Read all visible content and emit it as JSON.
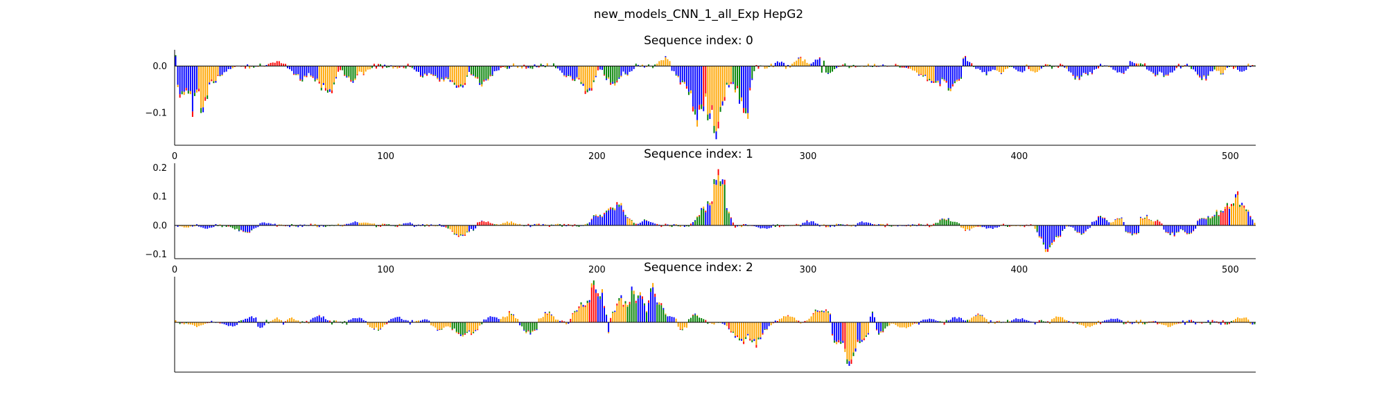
{
  "figure": {
    "title": "new_models_CNN_1_all_Exp HepG2"
  },
  "colors": {
    "A": "#008000",
    "C": "#0000ff",
    "G": "#ffa500",
    "T": "#ff0000"
  },
  "chart_data": [
    {
      "type": "sequence-logo",
      "title": "Sequence index: 0",
      "xlim": [
        0,
        512
      ],
      "ylim": [
        -0.17,
        0.035
      ],
      "xticks": [
        0,
        100,
        200,
        300,
        400,
        500
      ],
      "yticks": [
        0.0,
        -0.1
      ],
      "ytick_labels": [
        "0.0",
        "−0.1"
      ],
      "xtick_labels": [
        "0",
        "100",
        "200",
        "300",
        "400",
        "500"
      ],
      "show_ytick_labels": true,
      "show_xtick_labels": true,
      "features": [
        {
          "x": 0,
          "w": 2,
          "amp": 0.03,
          "b": "C"
        },
        {
          "x": 3,
          "w": 2,
          "amp": -0.08,
          "b": "C"
        },
        {
          "x": 6,
          "w": 1,
          "amp": 0.03,
          "b": "T"
        },
        {
          "x": 8,
          "w": 2,
          "amp": -0.1,
          "b": "C"
        },
        {
          "x": 13,
          "w": 2,
          "amp": -0.11,
          "b": "G"
        },
        {
          "x": 18,
          "w": 3,
          "amp": -0.035,
          "b": "G"
        },
        {
          "x": 22,
          "w": 3,
          "amp": -0.018,
          "b": "C"
        },
        {
          "x": 48,
          "w": 3,
          "amp": 0.012,
          "b": "T"
        },
        {
          "x": 60,
          "w": 4,
          "amp": -0.03,
          "b": "C"
        },
        {
          "x": 68,
          "w": 3,
          "amp": -0.04,
          "b": "C"
        },
        {
          "x": 72,
          "w": 3,
          "amp": -0.065,
          "b": "G"
        },
        {
          "x": 83,
          "w": 3,
          "amp": -0.035,
          "b": "A"
        },
        {
          "x": 88,
          "w": 3,
          "amp": -0.02,
          "b": "G"
        },
        {
          "x": 117,
          "w": 3,
          "amp": -0.025,
          "b": "C"
        },
        {
          "x": 127,
          "w": 5,
          "amp": -0.035,
          "b": "C"
        },
        {
          "x": 134,
          "w": 3,
          "amp": -0.06,
          "b": "G"
        },
        {
          "x": 145,
          "w": 4,
          "amp": -0.04,
          "b": "A"
        },
        {
          "x": 151,
          "w": 2,
          "amp": -0.015,
          "b": "C"
        },
        {
          "x": 185,
          "w": 3,
          "amp": -0.02,
          "b": "C"
        },
        {
          "x": 189,
          "w": 4,
          "amp": -0.038,
          "b": "C"
        },
        {
          "x": 195,
          "w": 3,
          "amp": -0.06,
          "b": "G"
        },
        {
          "x": 207,
          "w": 3,
          "amp": -0.045,
          "b": "A"
        },
        {
          "x": 213,
          "w": 3,
          "amp": -0.02,
          "b": "C"
        },
        {
          "x": 232,
          "w": 3,
          "amp": 0.02,
          "b": "G"
        },
        {
          "x": 236,
          "w": 2,
          "amp": -0.015,
          "b": "C"
        },
        {
          "x": 243,
          "w": 4,
          "amp": -0.06,
          "b": "C"
        },
        {
          "x": 247,
          "w": 3,
          "amp": -0.12,
          "b": "C"
        },
        {
          "x": 252,
          "w": 3,
          "amp": -0.1,
          "b": "T"
        },
        {
          "x": 256,
          "w": 3,
          "amp": -0.17,
          "b": "G"
        },
        {
          "x": 262,
          "w": 3,
          "amp": -0.06,
          "b": "G"
        },
        {
          "x": 265,
          "w": 2,
          "amp": -0.04,
          "b": "A"
        },
        {
          "x": 267,
          "w": 2,
          "amp": -0.05,
          "b": "G"
        },
        {
          "x": 270,
          "w": 2,
          "amp": -0.12,
          "b": "C"
        },
        {
          "x": 268,
          "w": 3,
          "amp": -0.06,
          "b": "A"
        },
        {
          "x": 286,
          "w": 2,
          "amp": 0.012,
          "b": "C"
        },
        {
          "x": 296,
          "w": 3,
          "amp": 0.018,
          "b": "G"
        },
        {
          "x": 305,
          "w": 3,
          "amp": 0.02,
          "b": "C"
        },
        {
          "x": 308,
          "w": 3,
          "amp": -0.02,
          "b": "A"
        },
        {
          "x": 353,
          "w": 4,
          "amp": -0.02,
          "b": "G"
        },
        {
          "x": 358,
          "w": 3,
          "amp": -0.04,
          "b": "G"
        },
        {
          "x": 362,
          "w": 4,
          "amp": -0.04,
          "b": "C"
        },
        {
          "x": 367,
          "w": 3,
          "amp": -0.05,
          "b": "C"
        },
        {
          "x": 371,
          "w": 3,
          "amp": -0.03,
          "b": "C"
        },
        {
          "x": 374,
          "w": 2,
          "amp": 0.02,
          "b": "C"
        },
        {
          "x": 384,
          "w": 3,
          "amp": -0.02,
          "b": "C"
        },
        {
          "x": 391,
          "w": 2,
          "amp": -0.018,
          "b": "G"
        },
        {
          "x": 400,
          "w": 2,
          "amp": -0.018,
          "b": "C"
        },
        {
          "x": 407,
          "w": 2,
          "amp": -0.02,
          "b": "G"
        },
        {
          "x": 427,
          "w": 3,
          "amp": -0.03,
          "b": "C"
        },
        {
          "x": 432,
          "w": 3,
          "amp": -0.02,
          "b": "C"
        },
        {
          "x": 448,
          "w": 3,
          "amp": -0.018,
          "b": "C"
        },
        {
          "x": 452,
          "w": 2,
          "amp": 0.012,
          "b": "C"
        },
        {
          "x": 464,
          "w": 3,
          "amp": -0.02,
          "b": "C"
        },
        {
          "x": 469,
          "w": 3,
          "amp": -0.025,
          "b": "C"
        },
        {
          "x": 487,
          "w": 3,
          "amp": -0.03,
          "b": "C"
        },
        {
          "x": 495,
          "w": 2,
          "amp": -0.018,
          "b": "G"
        },
        {
          "x": 505,
          "w": 2,
          "amp": -0.015,
          "b": "C"
        }
      ]
    },
    {
      "type": "sequence-logo",
      "title": "Sequence index: 1",
      "xlim": [
        0,
        512
      ],
      "ylim": [
        -0.115,
        0.215
      ],
      "xticks": [
        0,
        100,
        200,
        300,
        400,
        500
      ],
      "yticks": [
        0.2,
        0.1,
        0.0,
        -0.1
      ],
      "ytick_labels": [
        "0.2",
        "0.1",
        "0.0",
        "−0.1"
      ],
      "xtick_labels": [
        "0",
        "100",
        "200",
        "300",
        "400",
        "500"
      ],
      "show_ytick_labels": true,
      "show_xtick_labels": true,
      "features": [
        {
          "x": 5,
          "w": 2,
          "amp": -0.01,
          "b": "G"
        },
        {
          "x": 15,
          "w": 3,
          "amp": -0.012,
          "b": "C"
        },
        {
          "x": 30,
          "w": 3,
          "amp": -0.02,
          "b": "A"
        },
        {
          "x": 34,
          "w": 3,
          "amp": -0.03,
          "b": "C"
        },
        {
          "x": 42,
          "w": 3,
          "amp": 0.012,
          "b": "C"
        },
        {
          "x": 85,
          "w": 3,
          "amp": 0.015,
          "b": "C"
        },
        {
          "x": 90,
          "w": 3,
          "amp": 0.012,
          "b": "G"
        },
        {
          "x": 110,
          "w": 2,
          "amp": 0.012,
          "b": "C"
        },
        {
          "x": 135,
          "w": 4,
          "amp": -0.04,
          "b": "G"
        },
        {
          "x": 140,
          "w": 2,
          "amp": -0.02,
          "b": "C"
        },
        {
          "x": 146,
          "w": 3,
          "amp": 0.018,
          "b": "T"
        },
        {
          "x": 158,
          "w": 3,
          "amp": 0.015,
          "b": "G"
        },
        {
          "x": 200,
          "w": 3,
          "amp": 0.04,
          "b": "C"
        },
        {
          "x": 205,
          "w": 3,
          "amp": 0.07,
          "b": "C"
        },
        {
          "x": 210,
          "w": 3,
          "amp": 0.08,
          "b": "C"
        },
        {
          "x": 214,
          "w": 2,
          "amp": 0.03,
          "b": "G"
        },
        {
          "x": 223,
          "w": 3,
          "amp": 0.02,
          "b": "C"
        },
        {
          "x": 250,
          "w": 3,
          "amp": 0.06,
          "b": "A"
        },
        {
          "x": 253,
          "w": 3,
          "amp": 0.08,
          "b": "C"
        },
        {
          "x": 256,
          "w": 2,
          "amp": 0.2,
          "b": "G"
        },
        {
          "x": 258,
          "w": 2,
          "amp": 0.21,
          "b": "G"
        },
        {
          "x": 260,
          "w": 2,
          "amp": 0.1,
          "b": "A"
        },
        {
          "x": 263,
          "w": 2,
          "amp": -0.015,
          "b": "T"
        },
        {
          "x": 279,
          "w": 3,
          "amp": -0.015,
          "b": "C"
        },
        {
          "x": 300,
          "w": 3,
          "amp": 0.018,
          "b": "C"
        },
        {
          "x": 326,
          "w": 3,
          "amp": 0.015,
          "b": "C"
        },
        {
          "x": 365,
          "w": 4,
          "amp": 0.025,
          "b": "A"
        },
        {
          "x": 375,
          "w": 3,
          "amp": -0.02,
          "b": "G"
        },
        {
          "x": 386,
          "w": 3,
          "amp": -0.015,
          "b": "C"
        },
        {
          "x": 410,
          "w": 2,
          "amp": -0.03,
          "b": "A"
        },
        {
          "x": 413,
          "w": 3,
          "amp": -0.11,
          "b": "C"
        },
        {
          "x": 418,
          "w": 2,
          "amp": -0.04,
          "b": "C"
        },
        {
          "x": 429,
          "w": 3,
          "amp": -0.03,
          "b": "C"
        },
        {
          "x": 438,
          "w": 3,
          "amp": 0.03,
          "b": "C"
        },
        {
          "x": 447,
          "w": 3,
          "amp": 0.03,
          "b": "G"
        },
        {
          "x": 453,
          "w": 3,
          "amp": -0.04,
          "b": "C"
        },
        {
          "x": 459,
          "w": 3,
          "amp": 0.035,
          "b": "G"
        },
        {
          "x": 465,
          "w": 2,
          "amp": 0.02,
          "b": "T"
        },
        {
          "x": 472,
          "w": 3,
          "amp": -0.04,
          "b": "C"
        },
        {
          "x": 480,
          "w": 3,
          "amp": -0.03,
          "b": "C"
        },
        {
          "x": 487,
          "w": 3,
          "amp": 0.03,
          "b": "C"
        },
        {
          "x": 493,
          "w": 3,
          "amp": 0.05,
          "b": "A"
        },
        {
          "x": 497,
          "w": 2,
          "amp": 0.08,
          "b": "T"
        },
        {
          "x": 500,
          "w": 2,
          "amp": 0.09,
          "b": "C"
        },
        {
          "x": 502,
          "w": 2,
          "amp": 0.12,
          "b": "G"
        },
        {
          "x": 505,
          "w": 3,
          "amp": 0.07,
          "b": "G"
        },
        {
          "x": 508,
          "w": 2,
          "amp": 0.04,
          "b": "C"
        }
      ]
    },
    {
      "type": "sequence-logo",
      "title": "Sequence index: 2",
      "xlim": [
        0,
        512
      ],
      "ylim": [
        -0.12,
        0.11
      ],
      "xticks": [],
      "yticks": [],
      "ytick_labels": [],
      "xtick_labels": [],
      "show_ytick_labels": false,
      "show_xtick_labels": false,
      "features": [
        {
          "x": 10,
          "w": 3,
          "amp": -0.012,
          "b": "G"
        },
        {
          "x": 26,
          "w": 3,
          "amp": -0.012,
          "b": "C"
        },
        {
          "x": 36,
          "w": 3,
          "amp": 0.015,
          "b": "C"
        },
        {
          "x": 40,
          "w": 2,
          "amp": -0.015,
          "b": "C"
        },
        {
          "x": 48,
          "w": 2,
          "amp": 0.012,
          "b": "G"
        },
        {
          "x": 55,
          "w": 2,
          "amp": 0.012,
          "b": "G"
        },
        {
          "x": 68,
          "w": 3,
          "amp": 0.018,
          "b": "C"
        },
        {
          "x": 86,
          "w": 3,
          "amp": 0.015,
          "b": "C"
        },
        {
          "x": 95,
          "w": 3,
          "amp": -0.02,
          "b": "G"
        },
        {
          "x": 105,
          "w": 3,
          "amp": 0.015,
          "b": "C"
        },
        {
          "x": 118,
          "w": 2,
          "amp": 0.01,
          "b": "C"
        },
        {
          "x": 125,
          "w": 3,
          "amp": -0.02,
          "b": "G"
        },
        {
          "x": 132,
          "w": 3,
          "amp": -0.018,
          "b": "G"
        },
        {
          "x": 135,
          "w": 3,
          "amp": -0.035,
          "b": "A"
        },
        {
          "x": 140,
          "w": 3,
          "amp": -0.03,
          "b": "G"
        },
        {
          "x": 150,
          "w": 3,
          "amp": 0.018,
          "b": "C"
        },
        {
          "x": 158,
          "w": 3,
          "amp": 0.025,
          "b": "G"
        },
        {
          "x": 168,
          "w": 3,
          "amp": -0.03,
          "b": "A"
        },
        {
          "x": 176,
          "w": 3,
          "amp": 0.025,
          "b": "G"
        },
        {
          "x": 192,
          "w": 3,
          "amp": 0.05,
          "b": "G"
        },
        {
          "x": 196,
          "w": 2,
          "amp": 0.07,
          "b": "G"
        },
        {
          "x": 198,
          "w": 2,
          "amp": 0.1,
          "b": "T"
        },
        {
          "x": 201,
          "w": 2,
          "amp": 0.09,
          "b": "C"
        },
        {
          "x": 203,
          "w": 2,
          "amp": -0.04,
          "b": "C"
        },
        {
          "x": 211,
          "w": 3,
          "amp": 0.06,
          "b": "G"
        },
        {
          "x": 216,
          "w": 2,
          "amp": 0.08,
          "b": "A"
        },
        {
          "x": 220,
          "w": 2,
          "amp": 0.07,
          "b": "C"
        },
        {
          "x": 226,
          "w": 2,
          "amp": 0.085,
          "b": "C"
        },
        {
          "x": 229,
          "w": 2,
          "amp": 0.07,
          "b": "A"
        },
        {
          "x": 234,
          "w": 3,
          "amp": 0.02,
          "b": "C"
        },
        {
          "x": 240,
          "w": 3,
          "amp": -0.018,
          "b": "G"
        },
        {
          "x": 246,
          "w": 3,
          "amp": 0.02,
          "b": "A"
        },
        {
          "x": 268,
          "w": 4,
          "amp": -0.05,
          "b": "G"
        },
        {
          "x": 274,
          "w": 3,
          "amp": -0.06,
          "b": "G"
        },
        {
          "x": 279,
          "w": 2,
          "amp": -0.02,
          "b": "C"
        },
        {
          "x": 290,
          "w": 3,
          "amp": 0.02,
          "b": "G"
        },
        {
          "x": 304,
          "w": 3,
          "amp": 0.03,
          "b": "G"
        },
        {
          "x": 308,
          "w": 3,
          "amp": 0.04,
          "b": "G"
        },
        {
          "x": 314,
          "w": 3,
          "amp": -0.06,
          "b": "C"
        },
        {
          "x": 318,
          "w": 2,
          "amp": -0.08,
          "b": "T"
        },
        {
          "x": 320,
          "w": 2,
          "amp": -0.11,
          "b": "G"
        },
        {
          "x": 323,
          "w": 2,
          "amp": -0.06,
          "b": "C"
        },
        {
          "x": 326,
          "w": 2,
          "amp": -0.05,
          "b": "G"
        },
        {
          "x": 330,
          "w": 2,
          "amp": 0.025,
          "b": "C"
        },
        {
          "x": 333,
          "w": 2,
          "amp": -0.03,
          "b": "C"
        },
        {
          "x": 335,
          "w": 2,
          "amp": -0.025,
          "b": "A"
        },
        {
          "x": 345,
          "w": 3,
          "amp": -0.018,
          "b": "G"
        },
        {
          "x": 357,
          "w": 3,
          "amp": 0.012,
          "b": "C"
        },
        {
          "x": 370,
          "w": 3,
          "amp": 0.015,
          "b": "C"
        },
        {
          "x": 380,
          "w": 3,
          "amp": 0.02,
          "b": "G"
        },
        {
          "x": 400,
          "w": 3,
          "amp": 0.012,
          "b": "C"
        },
        {
          "x": 418,
          "w": 3,
          "amp": 0.015,
          "b": "G"
        },
        {
          "x": 432,
          "w": 3,
          "amp": -0.015,
          "b": "G"
        },
        {
          "x": 444,
          "w": 3,
          "amp": 0.012,
          "b": "C"
        },
        {
          "x": 470,
          "w": 3,
          "amp": -0.012,
          "b": "G"
        },
        {
          "x": 505,
          "w": 3,
          "amp": 0.015,
          "b": "G"
        }
      ]
    }
  ]
}
